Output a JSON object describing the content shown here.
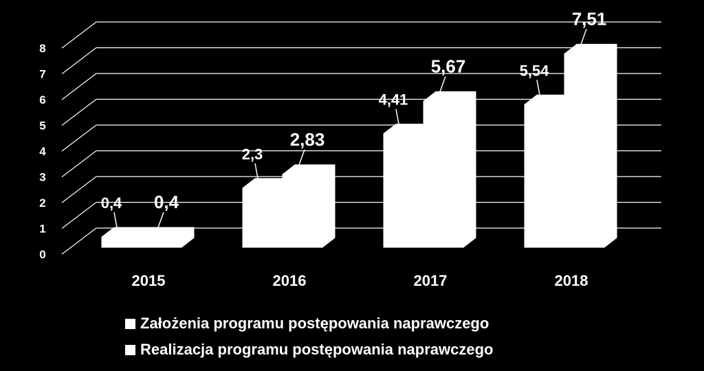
{
  "chart_data": {
    "type": "bar",
    "categories": [
      "2015",
      "2016",
      "2017",
      "2018"
    ],
    "series": [
      {
        "name": "Założenia programu postępowania naprawczego",
        "values": [
          0.4,
          2.3,
          4.41,
          5.54
        ],
        "labels": [
          "0,4",
          "2,3",
          "4,41",
          "5,54"
        ]
      },
      {
        "name": "Realizacja programu postępowania naprawczego",
        "values": [
          0.4,
          2.83,
          5.67,
          7.51
        ],
        "labels": [
          "0,4",
          "2,83",
          "5,67",
          "7,51"
        ]
      }
    ],
    "y_ticks": [
      "0",
      "1",
      "2",
      "3",
      "4",
      "5",
      "6",
      "7",
      "8"
    ],
    "ylim": [
      0,
      8
    ],
    "grid": true,
    "three_d": true,
    "legend_position": "bottom",
    "colors": {
      "background": "#000000",
      "bars": "#ffffff",
      "grid": "#ffffff",
      "text": "#ffffff"
    }
  }
}
